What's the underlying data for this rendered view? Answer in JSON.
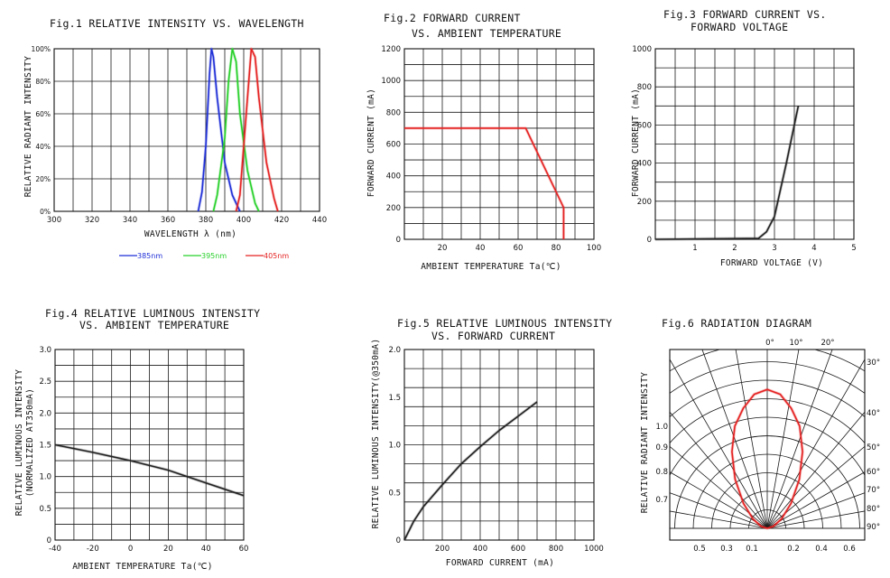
{
  "chart_data": [
    {
      "id": "fig1",
      "type": "line",
      "title": "Fig.1 RELATIVE INTENSITY VS. WAVELENGTH",
      "xlabel": "WAVELENGTH λ (nm)",
      "ylabel": "RELATIVE RADIANT INTENSITY",
      "xlim": [
        300,
        440
      ],
      "ylim": [
        0,
        100
      ],
      "x_ticks": [
        "300",
        "320",
        "340",
        "360",
        "380",
        "400",
        "420",
        "440"
      ],
      "y_ticks": [
        "0%",
        "20%",
        "40%",
        "60%",
        "80%",
        "100%"
      ],
      "grid": true,
      "legend_position": "bottom",
      "series": [
        {
          "name": "385nm",
          "color": "#1f2fd6",
          "points": [
            [
              376,
              0
            ],
            [
              378,
              12
            ],
            [
              380,
              40
            ],
            [
              382,
              85
            ],
            [
              383,
              100
            ],
            [
              384,
              95
            ],
            [
              386,
              70
            ],
            [
              390,
              30
            ],
            [
              394,
              10
            ],
            [
              398,
              0
            ]
          ]
        },
        {
          "name": "395nm",
          "color": "#27d02a",
          "points": [
            [
              384,
              0
            ],
            [
              386,
              10
            ],
            [
              390,
              45
            ],
            [
              392,
              80
            ],
            [
              394,
              100
            ],
            [
              396,
              92
            ],
            [
              398,
              60
            ],
            [
              402,
              25
            ],
            [
              406,
              5
            ],
            [
              408,
              0
            ]
          ]
        },
        {
          "name": "405nm",
          "color": "#e52222",
          "points": [
            [
              396,
              0
            ],
            [
              398,
              10
            ],
            [
              400,
              40
            ],
            [
              403,
              85
            ],
            [
              404,
              100
            ],
            [
              406,
              95
            ],
            [
              408,
              70
            ],
            [
              412,
              30
            ],
            [
              416,
              8
            ],
            [
              418,
              0
            ]
          ]
        }
      ]
    },
    {
      "id": "fig2",
      "type": "line",
      "title": [
        "Fig.2 FORWARD CURRENT",
        "VS. AMBIENT TEMPERATURE"
      ],
      "xlabel": "AMBIENT TEMPERATURE Ta(℃)",
      "ylabel": "FORWARD CURRENT (mA)",
      "xlim": [
        0,
        100
      ],
      "ylim": [
        0,
        1200
      ],
      "x_ticks": [
        "20",
        "40",
        "60",
        "80",
        "100"
      ],
      "y_ticks": [
        "0",
        "200",
        "400",
        "600",
        "800",
        "1000",
        "1200"
      ],
      "grid": true,
      "series": [
        {
          "color": "#e52222",
          "points": [
            [
              0,
              700
            ],
            [
              64,
              700
            ],
            [
              84,
              200
            ],
            [
              84,
              0
            ]
          ]
        }
      ]
    },
    {
      "id": "fig3",
      "type": "line",
      "title": [
        "Fig.3 FORWARD CURRENT VS.",
        "FORWARD VOLTAGE"
      ],
      "xlabel": "FORWARD VOLTAGE (V)",
      "ylabel": "FORWARD CURRENT (mA)",
      "xlim": [
        0,
        5
      ],
      "ylim": [
        0,
        1000
      ],
      "x_ticks": [
        "1",
        "2",
        "3",
        "4",
        "5"
      ],
      "y_ticks": [
        "0",
        "200",
        "400",
        "600",
        "800",
        "1000"
      ],
      "grid": true,
      "series": [
        {
          "color": "#222222",
          "points": [
            [
              0,
              0
            ],
            [
              2.6,
              5
            ],
            [
              2.8,
              40
            ],
            [
              3.0,
              120
            ],
            [
              3.3,
              400
            ],
            [
              3.6,
              700
            ]
          ]
        }
      ]
    },
    {
      "id": "fig4",
      "type": "line",
      "title": [
        "Fig.4 RELATIVE LUMINOUS INTENSITY",
        "VS. AMBIENT TEMPERATURE"
      ],
      "xlabel": "AMBIENT TEMPERATURE Ta(℃)",
      "ylabel": [
        "RELATIVE LUMINOUS INTENSITY",
        "(NORMALIZED AT350mA)"
      ],
      "xlim": [
        -40,
        60
      ],
      "ylim": [
        0,
        3.0
      ],
      "x_ticks": [
        "-40",
        "-20",
        "0",
        "20",
        "40",
        "60"
      ],
      "y_ticks": [
        "0",
        "0.5",
        "1.0",
        "1.5",
        "2.0",
        "2.5",
        "3.0"
      ],
      "grid": true,
      "series": [
        {
          "color": "#222222",
          "points": [
            [
              -40,
              1.5
            ],
            [
              -20,
              1.38
            ],
            [
              0,
              1.25
            ],
            [
              20,
              1.1
            ],
            [
              40,
              0.9
            ],
            [
              60,
              0.7
            ]
          ]
        }
      ]
    },
    {
      "id": "fig5",
      "type": "line",
      "title": [
        "Fig.5 RELATIVE LUMINOUS INTENSITY",
        "VS. FORWARD CURRENT"
      ],
      "xlabel": "FORWARD CURRENT (mA)",
      "ylabel": "RELATIVE LUMINOUS INTENSITY(@350mA)",
      "xlim": [
        0,
        1000
      ],
      "ylim": [
        0,
        2.0
      ],
      "x_ticks": [
        "200",
        "400",
        "600",
        "800",
        "1000"
      ],
      "y_ticks": [
        "0",
        "0.5",
        "1.0",
        "1.5",
        "2.0"
      ],
      "grid": true,
      "series": [
        {
          "color": "#222222",
          "points": [
            [
              0,
              0
            ],
            [
              50,
              0.2
            ],
            [
              100,
              0.35
            ],
            [
              200,
              0.58
            ],
            [
              300,
              0.8
            ],
            [
              400,
              0.98
            ],
            [
              500,
              1.15
            ],
            [
              600,
              1.3
            ],
            [
              700,
              1.45
            ]
          ]
        }
      ]
    },
    {
      "id": "fig6",
      "type": "polar",
      "title": "Fig.6 RADIATION DIAGRAM",
      "ylabel": "RELATIVE RADIANT INTENSITY",
      "top_angle_labels": [
        "0°",
        "10°",
        "20°"
      ],
      "right_angle_labels": [
        "30°",
        "40°",
        "50°",
        "60°",
        "70°",
        "80°",
        "90°"
      ],
      "left_scale_labels": [
        "1.0",
        "0.9",
        "0.8",
        "0.7"
      ],
      "bottom_scale_labels": [
        "0.5",
        "0.3",
        "0.1",
        "0.2",
        "0.4",
        "0.6"
      ],
      "series": [
        {
          "color": "#e52222",
          "points": [
            [
              0,
              1.0
            ],
            [
              10,
              0.98
            ],
            [
              20,
              0.92
            ],
            [
              30,
              0.85
            ],
            [
              40,
              0.72
            ],
            [
              50,
              0.55
            ],
            [
              60,
              0.36
            ],
            [
              70,
              0.2
            ],
            [
              80,
              0.08
            ],
            [
              90,
              0
            ]
          ]
        }
      ]
    }
  ]
}
